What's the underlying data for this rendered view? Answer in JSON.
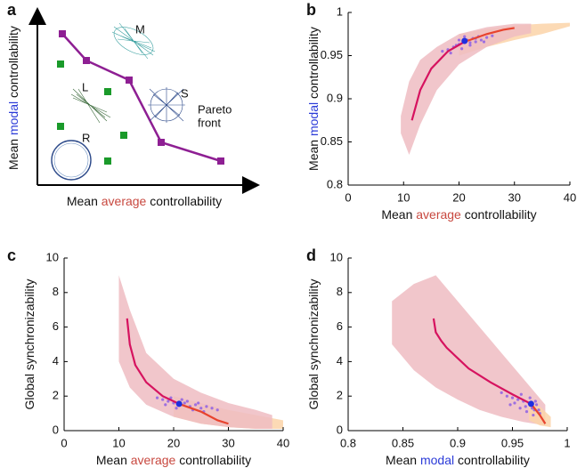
{
  "schematic": {
    "panel_label": "a",
    "xlabel": [
      {
        "text": "Mean "
      },
      {
        "text": "average",
        "color": "#c8483f"
      },
      {
        "text": " controllability"
      }
    ],
    "ylabel": [
      {
        "text": "Mean "
      },
      {
        "text": "modal",
        "color": "#2b3bd8"
      },
      {
        "text": " controllability"
      }
    ],
    "networks": [
      "M",
      "L",
      "S",
      "R"
    ],
    "pareto_label": [
      "Pareto",
      "front"
    ],
    "pareto_color": "#8e1f93"
  },
  "chart_data": [
    {
      "type": "line",
      "panel_label": "b",
      "xlabel": [
        {
          "text": "Mean "
        },
        {
          "text": "average",
          "color": "#c8483f"
        },
        {
          "text": " controllability"
        }
      ],
      "ylabel": [
        {
          "text": "Mean "
        },
        {
          "text": "modal",
          "color": "#2b3bd8"
        },
        {
          "text": " controllability"
        }
      ],
      "xlim": [
        0,
        40
      ],
      "ylim": [
        0.8,
        1
      ],
      "xticks": [
        0,
        10,
        20,
        30,
        40
      ],
      "yticks": [
        0.8,
        0.85,
        0.9,
        0.95,
        1
      ],
      "series": [
        {
          "type": "area",
          "color": "#fbd3a8",
          "x": [
            20,
            25,
            30,
            35,
            40
          ],
          "low": [
            0.95,
            0.96,
            0.968,
            0.975,
            0.984
          ],
          "high": [
            0.975,
            0.981,
            0.985,
            0.987,
            0.988
          ]
        },
        {
          "type": "area",
          "color": "#efbcc2",
          "x": [
            9.5,
            11,
            13,
            16,
            20,
            25,
            30,
            33
          ],
          "low": [
            0.86,
            0.835,
            0.87,
            0.91,
            0.94,
            0.96,
            0.972,
            0.976
          ],
          "high": [
            0.88,
            0.92,
            0.945,
            0.96,
            0.975,
            0.983,
            0.987,
            0.987
          ]
        },
        {
          "type": "scatter",
          "color": "#9d6fe0",
          "size": 1.6,
          "x": [
            17,
            18,
            19,
            19.5,
            20,
            20.5,
            21.5,
            22,
            22.5,
            23,
            23.5,
            24,
            25,
            26,
            18.5,
            20,
            22,
            23,
            24.5,
            21
          ],
          "values": [
            0.955,
            0.957,
            0.96,
            0.962,
            0.963,
            0.958,
            0.968,
            0.965,
            0.97,
            0.966,
            0.972,
            0.968,
            0.971,
            0.973,
            0.953,
            0.968,
            0.962,
            0.97,
            0.966,
            0.972
          ]
        },
        {
          "type": "line",
          "color": "#e8432e",
          "x": [
            21,
            25,
            28,
            30
          ],
          "values": [
            0.966,
            0.975,
            0.98,
            0.982
          ]
        },
        {
          "type": "line",
          "color": "#d6135f",
          "x": [
            11.5,
            13,
            15,
            18,
            21
          ],
          "values": [
            0.875,
            0.91,
            0.935,
            0.955,
            0.966
          ]
        },
        {
          "type": "scatter",
          "color": "#1f2fe0",
          "size": 3.5,
          "x": [
            21
          ],
          "values": [
            0.967
          ]
        }
      ]
    },
    {
      "type": "line",
      "panel_label": "c",
      "xlabel": [
        {
          "text": "Mean "
        },
        {
          "text": "average",
          "color": "#c8483f"
        },
        {
          "text": " controllability"
        }
      ],
      "ylabel": [
        {
          "text": "Global synchronizability"
        }
      ],
      "xlim": [
        0,
        40
      ],
      "ylim": [
        0,
        10
      ],
      "xticks": [
        0,
        10,
        20,
        30,
        40
      ],
      "yticks": [
        0,
        2,
        4,
        6,
        8,
        10
      ],
      "series": [
        {
          "type": "area",
          "color": "#fbd3a8",
          "x": [
            20,
            25,
            30,
            35,
            40
          ],
          "low": [
            0.8,
            0.4,
            0.2,
            0.1,
            0.1
          ],
          "high": [
            2,
            1.6,
            1.2,
            0.9,
            0.6
          ]
        },
        {
          "type": "area",
          "color": "#efbcc2",
          "x": [
            10,
            12,
            15,
            20,
            25,
            30,
            35,
            38
          ],
          "low": [
            4,
            2.5,
            1.5,
            0.8,
            0.4,
            0.2,
            0.1,
            0.1
          ],
          "high": [
            9,
            7,
            4.5,
            3,
            2.2,
            1.6,
            1.2,
            0.9
          ]
        },
        {
          "type": "scatter",
          "color": "#9d6fe0",
          "size": 1.6,
          "x": [
            17,
            18,
            19,
            20,
            21,
            22,
            23,
            24,
            25,
            26,
            27,
            19.5,
            21.5,
            23.5,
            25.5,
            22.5,
            20.5,
            24.5,
            18.5,
            28
          ],
          "values": [
            1.9,
            1.8,
            1.7,
            1.6,
            1.5,
            1.6,
            1.4,
            1.5,
            1.3,
            1.4,
            1.3,
            1.9,
            1.8,
            1.2,
            1.1,
            1.7,
            1.3,
            1.6,
            1.5,
            1.2
          ]
        },
        {
          "type": "line",
          "color": "#e8432e",
          "x": [
            21,
            25,
            28,
            30
          ],
          "values": [
            1.55,
            1.1,
            0.6,
            0.4
          ]
        },
        {
          "type": "line",
          "color": "#d6135f",
          "x": [
            11.5,
            12,
            13,
            15,
            18,
            21
          ],
          "values": [
            6.5,
            5,
            3.8,
            2.8,
            2,
            1.55
          ]
        },
        {
          "type": "scatter",
          "color": "#1f2fe0",
          "size": 3.5,
          "x": [
            21
          ],
          "values": [
            1.55
          ]
        }
      ]
    },
    {
      "type": "line",
      "panel_label": "d",
      "xlabel": [
        {
          "text": "Mean "
        },
        {
          "text": "modal",
          "color": "#2b3bd8"
        },
        {
          "text": " controllability"
        }
      ],
      "ylabel": [
        {
          "text": "Global synchronizability"
        }
      ],
      "xlim": [
        0.8,
        1
      ],
      "ylim": [
        0,
        10
      ],
      "xticks": [
        0.8,
        0.85,
        0.9,
        0.95,
        1
      ],
      "yticks": [
        0,
        2,
        4,
        6,
        8,
        10
      ],
      "series": [
        {
          "type": "area",
          "color": "#efbcc2",
          "x": [
            0.84,
            0.86,
            0.88,
            0.9,
            0.92,
            0.94,
            0.96,
            0.98
          ],
          "low": [
            5,
            3.5,
            2.5,
            1.8,
            1.2,
            0.8,
            0.5,
            0.3
          ],
          "high": [
            7.5,
            8.5,
            9,
            7.5,
            6,
            4.5,
            3,
            1.5
          ]
        },
        {
          "type": "area",
          "color": "#fbd3a8",
          "x": [
            0.965,
            0.975,
            0.985
          ],
          "low": [
            0.6,
            0.3,
            0.2
          ],
          "high": [
            1.6,
            1.4,
            0.8
          ]
        },
        {
          "type": "scatter",
          "color": "#9d6fe0",
          "size": 1.6,
          "x": [
            0.94,
            0.945,
            0.95,
            0.955,
            0.96,
            0.962,
            0.965,
            0.968,
            0.97,
            0.972,
            0.975,
            0.958,
            0.952,
            0.966,
            0.963,
            0.971,
            0.948,
            0.969,
            0.957,
            0.974
          ],
          "values": [
            2.2,
            2,
            1.9,
            1.8,
            1.7,
            1.4,
            1.6,
            1.3,
            1.2,
            1.5,
            1,
            2.1,
            1.6,
            1.9,
            1.1,
            1.7,
            1.5,
            0.9,
            1.3,
            1.2
          ]
        },
        {
          "type": "line",
          "color": "#e8432e",
          "x": [
            0.967,
            0.975,
            0.98
          ],
          "values": [
            1.55,
            0.9,
            0.4
          ]
        },
        {
          "type": "line",
          "color": "#d6135f",
          "x": [
            0.878,
            0.88,
            0.885,
            0.89,
            0.9,
            0.91,
            0.93,
            0.95,
            0.967
          ],
          "values": [
            6.5,
            5.7,
            5.2,
            4.8,
            4.2,
            3.6,
            2.8,
            2.1,
            1.55
          ]
        },
        {
          "type": "scatter",
          "color": "#1f2fe0",
          "size": 3.5,
          "x": [
            0.967
          ],
          "values": [
            1.55
          ]
        }
      ]
    }
  ]
}
